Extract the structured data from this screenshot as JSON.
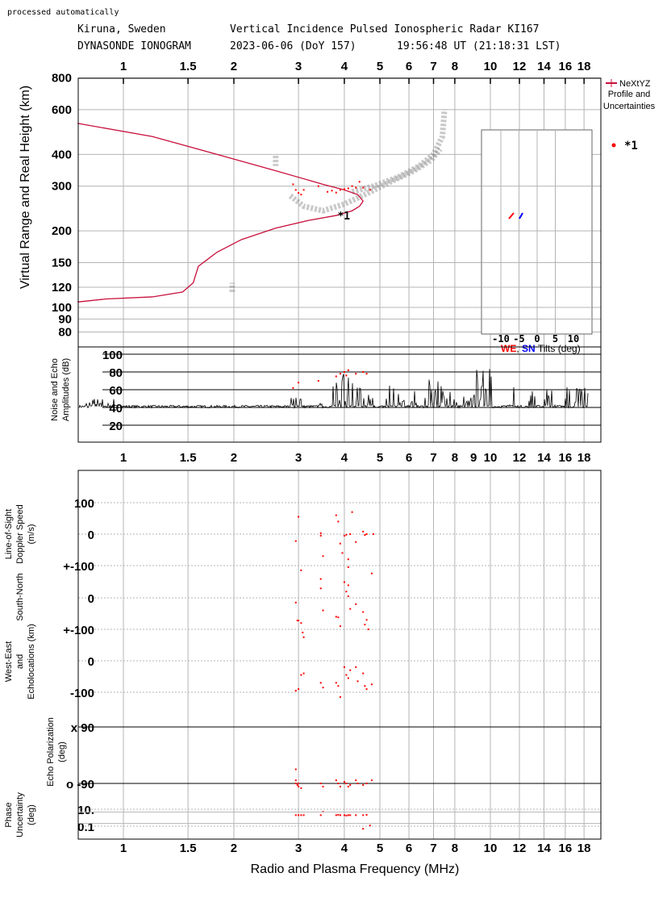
{
  "header": {
    "processed": "processed automatically",
    "station": "Kiruna, Sweden",
    "instrument": "Vertical Incidence Pulsed Ionospheric Radar KI167",
    "type": "DYNASONDE IONOGRAM",
    "date": "2023-06-06 (DoY 157)",
    "time": "19:56:48 UT (21:18:31 LST)"
  },
  "legend": {
    "profile_line1": "NeXtYZ",
    "profile_line2": "Profile and",
    "profile_line3": "Uncertainties",
    "echo_label": "*1"
  },
  "colors": {
    "profile": "#c8103c",
    "echo": "#ff0000",
    "tilt_we": "#ff0000",
    "tilt_sn": "#0000ff",
    "grid": "#b4b4b4"
  },
  "chart_data": {
    "type": "scatter",
    "xlabel": "Radio and Plasma Frequency (MHz)",
    "x_scale": "log",
    "xlim": [
      0.75,
      21
    ],
    "freq_ticks": [
      "1",
      "1.5",
      "2",
      "3",
      "4",
      "5",
      "6",
      "7",
      "8",
      "10",
      "12",
      "14",
      "16",
      "18"
    ],
    "freq_ticks_mid": [
      "1",
      "1.5",
      "2",
      "3",
      "4",
      "5",
      "6",
      "7",
      "8",
      "9",
      "10",
      "12",
      "14",
      "16",
      "18"
    ],
    "ionogram": {
      "ylabel": "Virtual Range and Real Height (km)",
      "y_scale": "log",
      "ylim": [
        75,
        800
      ],
      "y_ticks": [
        "800",
        "600",
        "400",
        "300",
        "200",
        "150",
        "120",
        "100",
        "90",
        "80"
      ],
      "profile": [
        [
          0.75,
          105
        ],
        [
          0.9,
          108
        ],
        [
          1.2,
          110
        ],
        [
          1.45,
          115
        ],
        [
          1.55,
          125
        ],
        [
          1.6,
          145
        ],
        [
          1.8,
          165
        ],
        [
          2.1,
          185
        ],
        [
          2.6,
          205
        ],
        [
          3.2,
          220
        ],
        [
          3.8,
          230
        ],
        [
          4.2,
          240
        ],
        [
          4.4,
          250
        ],
        [
          4.5,
          262
        ],
        [
          4.35,
          278
        ],
        [
          4.0,
          290
        ],
        [
          3.5,
          305
        ],
        [
          2.6,
          345
        ],
        [
          1.8,
          400
        ],
        [
          1.2,
          470
        ],
        [
          0.75,
          530
        ]
      ],
      "echo_traces": [
        [
          [
            2.85,
            275
          ],
          [
            3.1,
            250
          ],
          [
            3.5,
            240
          ],
          [
            4.0,
            255
          ],
          [
            4.6,
            280
          ],
          [
            5.3,
            310
          ],
          [
            6.2,
            345
          ],
          [
            6.9,
            380
          ],
          [
            7.3,
            420
          ]
        ],
        [
          [
            4.2,
            285
          ],
          [
            4.8,
            300
          ],
          [
            5.6,
            325
          ],
          [
            6.4,
            360
          ],
          [
            7.0,
            400
          ],
          [
            7.4,
            470
          ],
          [
            7.5,
            600
          ]
        ],
        [
          [
            2.6,
            395
          ],
          [
            2.6,
            360
          ]
        ],
        [
          [
            1.98,
            115
          ],
          [
            1.98,
            125
          ]
        ]
      ],
      "echo_points": [
        [
          2.9,
          305
        ],
        [
          2.95,
          290
        ],
        [
          3.0,
          282
        ],
        [
          3.05,
          278
        ],
        [
          3.1,
          290
        ],
        [
          3.4,
          300
        ],
        [
          3.6,
          285
        ],
        [
          3.7,
          288
        ],
        [
          3.8,
          283
        ],
        [
          3.9,
          290
        ],
        [
          4.0,
          292
        ],
        [
          4.1,
          294
        ],
        [
          4.2,
          300
        ],
        [
          4.3,
          296
        ],
        [
          4.4,
          312
        ],
        [
          4.5,
          296
        ],
        [
          4.7,
          290
        ]
      ],
      "marker_label": "*1",
      "marker_point": [
        3.95,
        230
      ],
      "tilt_inset": {
        "xticks": [
          "-10",
          "-5",
          "0",
          "5",
          "10"
        ],
        "legend_we": "WE",
        "legend_sep": ",",
        "legend_sn": "SN",
        "legend_rest": "Tilts (deg)",
        "we_segment": [
          [
            -7.5,
            -6.5
          ],
          [
            -6.8,
            -6.0
          ]
        ],
        "sn_segment": [
          [
            -4.8,
            -4.0
          ]
        ]
      }
    },
    "amplitude": {
      "ylabel_line1": "Noise and Echo",
      "ylabel_line2": "Amplitudes (dB)",
      "ylim": [
        5,
        105
      ],
      "y_ticks": [
        "100",
        "80",
        "60",
        "40",
        "20"
      ],
      "noise_floor_db": 41,
      "spike_bands": [
        [
          0.78,
          0.95,
          50
        ],
        [
          2.85,
          3.05,
          55
        ],
        [
          3.4,
          3.5,
          55
        ],
        [
          3.7,
          4.6,
          78
        ],
        [
          4.6,
          4.8,
          62
        ],
        [
          5.0,
          5.5,
          70
        ],
        [
          5.5,
          6.0,
          60
        ],
        [
          6.0,
          6.3,
          62
        ],
        [
          6.6,
          7.5,
          75
        ],
        [
          7.5,
          8.2,
          58
        ],
        [
          8.4,
          9.0,
          56
        ],
        [
          9.0,
          10.2,
          85
        ],
        [
          11.0,
          11.8,
          87
        ],
        [
          12.6,
          13.3,
          60
        ],
        [
          14.0,
          15.0,
          62
        ],
        [
          15.5,
          16.5,
          66
        ],
        [
          16.8,
          19.5,
          63
        ]
      ],
      "echo_points": [
        [
          2.9,
          62
        ],
        [
          3.0,
          68
        ],
        [
          3.4,
          70
        ],
        [
          3.8,
          75
        ],
        [
          3.9,
          78
        ],
        [
          4.0,
          80
        ],
        [
          4.05,
          76
        ],
        [
          4.1,
          82
        ],
        [
          4.3,
          78
        ],
        [
          4.5,
          80
        ],
        [
          4.6,
          78
        ]
      ]
    },
    "doppler": {
      "ylabel_line1": "Line-of-Sight",
      "ylabel_line2": "Doppler Speed",
      "ylabel_line3": "(m/s)",
      "y_ticks": [
        "100",
        "0",
        "+-100"
      ],
      "points": [
        [
          2.95,
          -22
        ],
        [
          3.0,
          55
        ],
        [
          3.05,
          -115
        ],
        [
          3.45,
          -5
        ],
        [
          3.45,
          3
        ],
        [
          3.5,
          -70
        ],
        [
          3.8,
          60
        ],
        [
          3.85,
          40
        ],
        [
          3.9,
          -30
        ],
        [
          3.95,
          -60
        ],
        [
          4.0,
          -5
        ],
        [
          4.05,
          -2
        ],
        [
          4.1,
          -80
        ],
        [
          4.1,
          -105
        ],
        [
          4.15,
          0
        ],
        [
          4.2,
          70
        ],
        [
          4.3,
          -25
        ],
        [
          4.5,
          8
        ],
        [
          4.55,
          -3
        ],
        [
          4.6,
          0
        ],
        [
          4.75,
          -125
        ],
        [
          4.8,
          0
        ]
      ]
    },
    "south_north": {
      "ylabel_line1": "South-North",
      "y_ticks": [
        "0",
        "+-100"
      ],
      "points": [
        [
          2.95,
          -15
        ],
        [
          2.98,
          -72
        ],
        [
          3.0,
          -72
        ],
        [
          3.05,
          -80
        ],
        [
          3.08,
          -110
        ],
        [
          3.1,
          -125
        ],
        [
          3.45,
          60
        ],
        [
          3.45,
          30
        ],
        [
          3.5,
          -40
        ],
        [
          3.8,
          -60
        ],
        [
          3.85,
          -62
        ],
        [
          3.9,
          -90
        ],
        [
          4.0,
          50
        ],
        [
          4.05,
          20
        ],
        [
          4.1,
          5
        ],
        [
          4.1,
          40
        ],
        [
          4.15,
          -35
        ],
        [
          4.3,
          -20
        ],
        [
          4.5,
          -45
        ],
        [
          4.6,
          -70
        ],
        [
          4.55,
          -85
        ],
        [
          4.65,
          -100
        ]
      ]
    },
    "west_east": {
      "ylabel_line1": "West-East",
      "ylabel_line2": "and",
      "ylabel_line3": "Echolocations (km)",
      "y_ticks": [
        "0",
        "-100"
      ],
      "points": [
        [
          2.95,
          -95
        ],
        [
          3.0,
          -90
        ],
        [
          3.05,
          -45
        ],
        [
          3.1,
          -40
        ],
        [
          3.45,
          -70
        ],
        [
          3.5,
          -85
        ],
        [
          3.8,
          -70
        ],
        [
          3.85,
          -80
        ],
        [
          3.9,
          -115
        ],
        [
          4.0,
          -20
        ],
        [
          4.05,
          -45
        ],
        [
          4.1,
          -55
        ],
        [
          4.15,
          -30
        ],
        [
          4.3,
          -20
        ],
        [
          4.35,
          -65
        ],
        [
          4.5,
          -40
        ],
        [
          4.55,
          -80
        ],
        [
          4.6,
          -90
        ],
        [
          4.75,
          -75
        ]
      ]
    },
    "polarization": {
      "ylabel_line1": "Echo Polarization",
      "ylabel_line2": "(deg)",
      "y_ticks": [
        "x 90",
        "o -90"
      ],
      "points": [
        [
          2.95,
          -90
        ],
        [
          2.95,
          -80
        ],
        [
          2.98,
          -95
        ],
        [
          3.0,
          -100
        ],
        [
          3.0,
          -90
        ],
        [
          3.05,
          -105
        ],
        [
          3.45,
          -90
        ],
        [
          3.5,
          -100
        ],
        [
          3.8,
          -80
        ],
        [
          3.85,
          -90
        ],
        [
          3.9,
          -100
        ],
        [
          4.0,
          -85
        ],
        [
          4.05,
          -90
        ],
        [
          4.1,
          -100
        ],
        [
          4.15,
          -95
        ],
        [
          4.3,
          -80
        ],
        [
          4.35,
          -90
        ],
        [
          4.5,
          -95
        ],
        [
          4.6,
          -90
        ],
        [
          4.75,
          -80
        ],
        [
          2.95,
          -45
        ]
      ]
    },
    "phase": {
      "ylabel_line1": "Phase",
      "ylabel_line2": "Uncertainty",
      "ylabel_line3": "(deg)",
      "y_ticks": [
        "10.",
        "0.1"
      ],
      "points": [
        [
          2.95,
          2
        ],
        [
          3.0,
          2
        ],
        [
          3.05,
          2
        ],
        [
          3.1,
          2
        ],
        [
          3.45,
          2
        ],
        [
          3.5,
          5
        ],
        [
          3.8,
          2
        ],
        [
          3.85,
          2.2
        ],
        [
          3.9,
          2
        ],
        [
          4.0,
          2
        ],
        [
          4.05,
          1.8
        ],
        [
          4.1,
          2
        ],
        [
          4.15,
          2
        ],
        [
          4.3,
          2
        ],
        [
          4.5,
          2
        ],
        [
          4.5,
          0.05
        ],
        [
          4.6,
          2.2
        ],
        [
          4.7,
          0.12
        ]
      ]
    }
  }
}
